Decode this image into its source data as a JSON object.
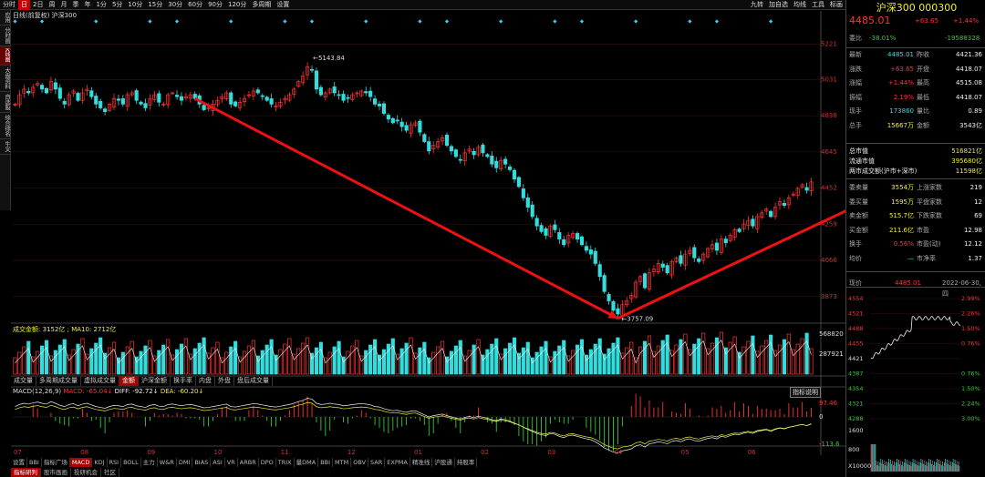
{
  "toolbar": {
    "items": [
      "分时",
      "日",
      "2日",
      "周",
      "月",
      "季",
      "年",
      "1分",
      "5分",
      "10分",
      "15分",
      "30分",
      "60分",
      "90分",
      "120分",
      "多周期",
      "设置"
    ],
    "active_index": 1,
    "right": [
      "九转",
      "加自选",
      "均线",
      "工具",
      "标画"
    ]
  },
  "leftnav": {
    "items": [
      "应用",
      "分时图",
      "K线图",
      "大盘资料",
      "自选股",
      "综合排名",
      "牛叉"
    ],
    "active_index": 2
  },
  "chart_title": "日线(前复权)  沪深300",
  "price_axis": [
    "5221",
    "5031",
    "4838",
    "4645",
    "4452",
    "4259",
    "4066",
    "3873"
  ],
  "annotations": {
    "high": "5143.84",
    "low": "3757.09"
  },
  "volume": {
    "label": "成交金额: 3152亿 ; MA10: 2712亿",
    "axis": [
      "568820",
      "287921"
    ]
  },
  "indicator_tabs": [
    "成交量",
    "多周期成交量",
    "虚拟成交量",
    "金额",
    "沪深金额",
    "换手率",
    "内盘",
    "外盘",
    "盘后成交量"
  ],
  "indicator_tab_active": 3,
  "macd": {
    "label_prefix": "MACD(12,26,9)",
    "macd": "MACD: -65.04↓",
    "diff": "DIFF: -92.72↓",
    "dea": "DEA: -60.20↓",
    "axis": [
      "97.46",
      "0",
      "-113.6"
    ],
    "button": "指标说明"
  },
  "months": [
    "07",
    "08",
    "09",
    "10",
    "11",
    "12",
    "01",
    "02",
    "03",
    "04",
    "05",
    "06"
  ],
  "bottom_tabs": [
    "设置",
    "BBI",
    "指标广场",
    "MACD",
    "KDJ",
    "RSI",
    "BOLL",
    "主力",
    "W&R",
    "DMI",
    "BIAS",
    "ASI",
    "VR",
    "ARBR",
    "DPO",
    "TRIX",
    "量DMA",
    "BBI",
    "MTM",
    "OBV",
    "SAR",
    "EXPMA",
    "精准线",
    "沪股通",
    "持股率"
  ],
  "bottom_tabs_active": 3,
  "bottom_tabs2": [
    "指标研判",
    "股市画画",
    "投研机会",
    "社区"
  ],
  "bottom_tabs2_active": 0,
  "quote": {
    "name": "沪深300 000300",
    "price": "4485.01",
    "change": "+63.65",
    "pct": "+1.44%",
    "weibi_label": "委比",
    "weibi": "-38.01%",
    "weicha": "-19588328",
    "rows": [
      [
        "最新",
        "4485.01",
        "昨收",
        "4421.36"
      ],
      [
        "涨跌",
        "+63.65",
        "开盘",
        "4418.07"
      ],
      [
        "涨幅",
        "+1.44%",
        "最高",
        "4515.08"
      ],
      [
        "振幅",
        "2.19%",
        "最低",
        "4418.07"
      ],
      [
        "现手",
        "173860",
        "量比",
        "0.89"
      ],
      [
        "总手",
        "15667万",
        "金额",
        "3543亿"
      ]
    ],
    "cap": [
      [
        "总市值",
        "516821亿"
      ],
      [
        "流通市值",
        "395680亿"
      ],
      [
        "两市成交额(沪市+深市)",
        "11598亿"
      ]
    ],
    "rows2": [
      [
        "委卖量",
        "3554万",
        "上涨家数",
        "219"
      ],
      [
        "委买量",
        "1595万",
        "平盘家数",
        "12"
      ],
      [
        "卖金额",
        "515.7亿",
        "下跌家数",
        "69"
      ],
      [
        "买金额",
        "211.6亿",
        "市盈",
        "12.98"
      ],
      [
        "换手",
        "0.56%",
        "市盈(动)",
        "12.12"
      ],
      [
        "均价",
        "—",
        "市净率",
        "1.37"
      ]
    ],
    "now_label": "现价",
    "now_price": "4485.01",
    "date": "2022-06-30,四",
    "mini_axis_left": [
      "4554",
      "4521",
      "4488",
      "4455",
      "4421",
      "4387",
      "4354",
      "4321",
      "4288"
    ],
    "mini_axis_right": [
      "2.99%",
      "2.26%",
      "1.50%",
      "0.76%",
      "",
      "0.76%",
      "1.50%",
      "2.24%",
      "3.00%"
    ],
    "mini_vol": [
      "1600",
      "800",
      "X10000"
    ]
  },
  "colors": {
    "up": "#ff3333",
    "down": "#33dddd",
    "arrow": "#ee1111"
  },
  "chart_data": {
    "type": "candlestick",
    "title": "沪深300",
    "high": 5143.84,
    "low": 3757.09,
    "ylim": [
      3780,
      5300
    ],
    "trend_lines": [
      [
        [
          40,
          4930
        ],
        [
          134,
          3757
        ]
      ],
      [
        [
          134,
          3757
        ],
        [
          205,
          4560
        ]
      ]
    ],
    "close_series": [
      4900,
      4950,
      4980,
      4960,
      4990,
      5010,
      4980,
      4960,
      5020,
      4980,
      4930,
      4900,
      4950,
      4970,
      4920,
      4960,
      4980,
      4940,
      4900,
      4880,
      4860,
      4900,
      4930,
      4920,
      4900,
      4950,
      4960,
      4920,
      4900,
      4880,
      4930,
      4950,
      4910,
      4900,
      4950,
      4960,
      4940,
      4920,
      4940,
      4950,
      4930,
      4900,
      4870,
      4880,
      4900,
      4920,
      4940,
      4960,
      4900,
      4890,
      4910,
      4930,
      4950,
      4970,
      4960,
      4940,
      4920,
      4900,
      4890,
      4910,
      4930,
      4950,
      4980,
      5020,
      5050,
      5100,
      5080,
      4980,
      4950,
      4960,
      4980,
      4960,
      4950,
      4920,
      4930,
      4950,
      4960,
      4970,
      4960,
      4940,
      4900,
      4890,
      4850,
      4820,
      4800,
      4810,
      4780,
      4760,
      4790,
      4800,
      4750,
      4700,
      4650,
      4680,
      4700,
      4720,
      4680,
      4650,
      4620,
      4600,
      4640,
      4660,
      4630,
      4670,
      4640,
      4620,
      4580,
      4560,
      4600,
      4580,
      4550,
      4500,
      4460,
      4400,
      4350,
      4300,
      4250,
      4220,
      4200,
      4250,
      4230,
      4180,
      4150,
      4200,
      4210,
      4180,
      4150,
      4120,
      4100,
      4050,
      3980,
      3900,
      3850,
      3800,
      3780,
      3830,
      3850,
      3880,
      3950,
      3980,
      3920,
      4000,
      4020,
      4050,
      4030,
      4000,
      4060,
      4080,
      4050,
      4100,
      4120,
      4080,
      4060,
      4100,
      4130,
      4150,
      4120,
      4180,
      4160,
      4200,
      4230,
      4220,
      4260,
      4280,
      4250,
      4300,
      4320,
      4340,
      4300,
      4350,
      4380,
      4360,
      4400,
      4420,
      4450,
      4470,
      4440,
      4485
    ]
  }
}
